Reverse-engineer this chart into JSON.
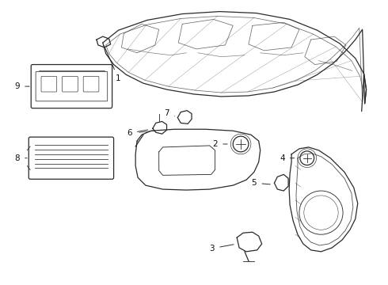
{
  "bg_color": "#ffffff",
  "line_color": "#2a2a2a",
  "label_color": "#111111",
  "label_fontsize": 7.5,
  "lw": 0.9
}
